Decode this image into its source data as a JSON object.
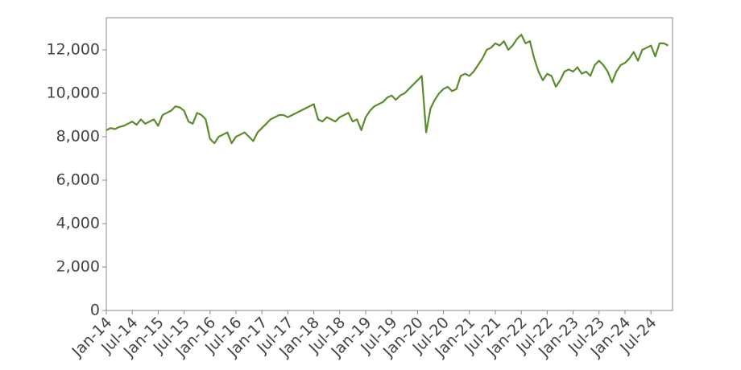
{
  "chart_data": {
    "type": "line",
    "x": [
      "2014-01",
      "2014-02",
      "2014-03",
      "2014-04",
      "2014-05",
      "2014-06",
      "2014-07",
      "2014-08",
      "2014-09",
      "2014-10",
      "2014-11",
      "2014-12",
      "2015-01",
      "2015-02",
      "2015-03",
      "2015-04",
      "2015-05",
      "2015-06",
      "2015-07",
      "2015-08",
      "2015-09",
      "2015-10",
      "2015-11",
      "2015-12",
      "2016-01",
      "2016-02",
      "2016-03",
      "2016-04",
      "2016-05",
      "2016-06",
      "2016-07",
      "2016-08",
      "2016-09",
      "2016-10",
      "2016-11",
      "2016-12",
      "2017-01",
      "2017-02",
      "2017-03",
      "2017-04",
      "2017-05",
      "2017-06",
      "2017-07",
      "2017-08",
      "2017-09",
      "2017-10",
      "2017-11",
      "2017-12",
      "2018-01",
      "2018-02",
      "2018-03",
      "2018-04",
      "2018-05",
      "2018-06",
      "2018-07",
      "2018-08",
      "2018-09",
      "2018-10",
      "2018-11",
      "2018-12",
      "2019-01",
      "2019-02",
      "2019-03",
      "2019-04",
      "2019-05",
      "2019-06",
      "2019-07",
      "2019-08",
      "2019-09",
      "2019-10",
      "2019-11",
      "2019-12",
      "2020-01",
      "2020-02",
      "2020-03",
      "2020-04",
      "2020-05",
      "2020-06",
      "2020-07",
      "2020-08",
      "2020-09",
      "2020-10",
      "2020-11",
      "2020-12",
      "2021-01",
      "2021-02",
      "2021-03",
      "2021-04",
      "2021-05",
      "2021-06",
      "2021-07",
      "2021-08",
      "2021-09",
      "2021-10",
      "2021-11",
      "2021-12",
      "2022-01",
      "2022-02",
      "2022-03",
      "2022-04",
      "2022-05",
      "2022-06",
      "2022-07",
      "2022-08",
      "2022-09",
      "2022-10",
      "2022-11",
      "2022-12",
      "2023-01",
      "2023-02",
      "2023-03",
      "2023-04",
      "2023-05",
      "2023-06",
      "2023-07",
      "2023-08",
      "2023-09",
      "2023-10",
      "2023-11",
      "2023-12",
      "2024-01",
      "2024-02",
      "2024-03",
      "2024-04",
      "2024-05",
      "2024-06",
      "2024-07",
      "2024-08",
      "2024-09",
      "2024-10",
      "2024-11"
    ],
    "series": [
      {
        "color": "#5b8c2a",
        "values": [
          8300,
          8400,
          8350,
          8450,
          8500,
          8600,
          8700,
          8550,
          8800,
          8600,
          8700,
          8800,
          8500,
          9000,
          9100,
          9200,
          9400,
          9350,
          9200,
          8700,
          8600,
          9100,
          9000,
          8800,
          7900,
          7700,
          8000,
          8100,
          8200,
          7700,
          8000,
          8100,
          8200,
          8000,
          7800,
          8200,
          8400,
          8600,
          8800,
          8900,
          9000,
          9000,
          8900,
          9000,
          9100,
          9200,
          9300,
          9400,
          9500,
          8800,
          8700,
          8900,
          8800,
          8700,
          8900,
          9000,
          9100,
          8700,
          8800,
          8300,
          8900,
          9200,
          9400,
          9500,
          9600,
          9800,
          9900,
          9700,
          9900,
          10000,
          10200,
          10400,
          10600,
          10800,
          8200,
          9300,
          9700,
          10000,
          10200,
          10300,
          10100,
          10200,
          10800,
          10900,
          10800,
          11000,
          11300,
          11600,
          12000,
          12100,
          12300,
          12200,
          12400,
          12000,
          12200,
          12500,
          12700,
          12300,
          12400,
          11600,
          11000,
          10600,
          10900,
          10800,
          10300,
          10600,
          11000,
          11100,
          11000,
          11200,
          10900,
          11000,
          10800,
          11300,
          11500,
          11300,
          11000,
          10500,
          11000,
          11300,
          11400,
          11600,
          11900,
          11500,
          12000,
          12100,
          12200,
          11700,
          12300,
          12300,
          12200
        ]
      }
    ],
    "xlim": [
      "2014-01",
      "2024-12"
    ],
    "xticks": [
      {
        "value": "2014-01",
        "label": "Jan-14"
      },
      {
        "value": "2014-07",
        "label": "Jul-14"
      },
      {
        "value": "2015-01",
        "label": "Jan-15"
      },
      {
        "value": "2015-07",
        "label": "Jul-15"
      },
      {
        "value": "2016-01",
        "label": "Jan-16"
      },
      {
        "value": "2016-07",
        "label": "Jul-16"
      },
      {
        "value": "2017-01",
        "label": "Jan-17"
      },
      {
        "value": "2017-07",
        "label": "Jul-17"
      },
      {
        "value": "2018-01",
        "label": "Jan-18"
      },
      {
        "value": "2018-07",
        "label": "Jul-18"
      },
      {
        "value": "2019-01",
        "label": "Jan-19"
      },
      {
        "value": "2019-07",
        "label": "Jul-19"
      },
      {
        "value": "2020-01",
        "label": "Jan-20"
      },
      {
        "value": "2020-07",
        "label": "Jul-20"
      },
      {
        "value": "2021-01",
        "label": "Jan-21"
      },
      {
        "value": "2021-07",
        "label": "Jul-21"
      },
      {
        "value": "2022-01",
        "label": "Jan-22"
      },
      {
        "value": "2022-07",
        "label": "Jul-22"
      },
      {
        "value": "2023-01",
        "label": "Jan-23"
      },
      {
        "value": "2023-07",
        "label": "Jul-23"
      },
      {
        "value": "2024-01",
        "label": "Jan-24"
      },
      {
        "value": "2024-07",
        "label": "Jul-24"
      }
    ],
    "ylim": [
      0,
      13480
    ],
    "yticks": [
      0,
      {
        "value": 2000,
        "label": "2,000"
      },
      {
        "value": 4000,
        "label": "4,000"
      },
      {
        "value": 6000,
        "label": "6,000"
      },
      {
        "value": 8000,
        "label": "8,000"
      },
      {
        "value": 10000,
        "label": "10,000"
      },
      {
        "value": 12000,
        "label": "12,000"
      }
    ]
  }
}
